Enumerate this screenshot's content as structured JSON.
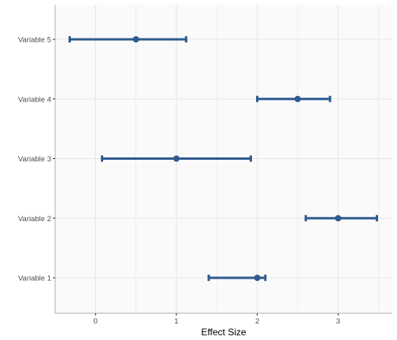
{
  "chart_data": {
    "type": "forest",
    "title": "",
    "xlabel": "Effect Size",
    "ylabel": "",
    "xlim": [
      -0.5,
      3.67
    ],
    "x_ticks": [
      0,
      1,
      2,
      3
    ],
    "categories": [
      "Variable 1",
      "Variable 2",
      "Variable 3",
      "Variable 4",
      "Variable 5"
    ],
    "estimates": [
      2.0,
      3.0,
      1.0,
      2.5,
      0.5
    ],
    "ci_lower": [
      1.4,
      2.6,
      0.08,
      2.0,
      -0.32
    ],
    "ci_upper": [
      2.1,
      3.48,
      1.92,
      2.9,
      1.12
    ],
    "grid": true,
    "colors": {
      "series": "#2f5b8f",
      "panel_background": "#fafafa",
      "grid": "#e6e6e6",
      "axis": "#bdbdbd"
    }
  }
}
